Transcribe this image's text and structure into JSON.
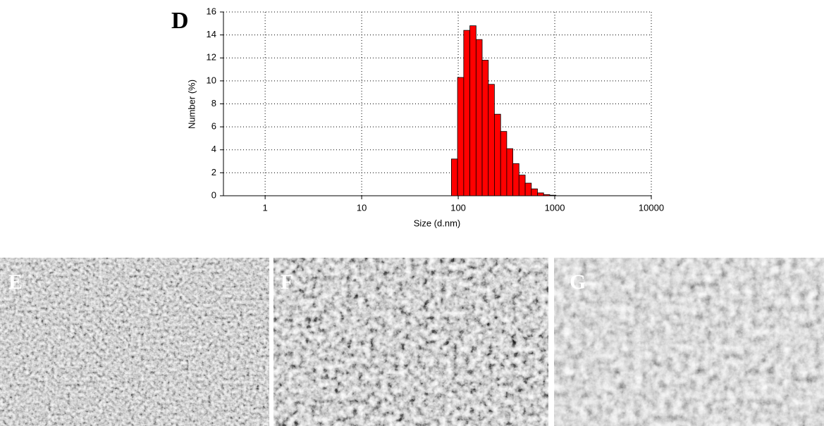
{
  "chart_data": {
    "type": "histogram",
    "panel_label": "D",
    "x_label": "Size (d.nm)",
    "y_label": "Number (%)",
    "x_scale": "log",
    "xlim": [
      0.37,
      10000
    ],
    "xticks": [
      1,
      10,
      100,
      1000,
      10000
    ],
    "ylim": [
      0,
      16
    ],
    "yticks": [
      0,
      2,
      4,
      6,
      8,
      10,
      12,
      14,
      16
    ],
    "grid": true,
    "color": "#ff0000",
    "bins": [
      85,
      98.4,
      114,
      132,
      153,
      177,
      205,
      237,
      275,
      318,
      368,
      426,
      494,
      572,
      662,
      767,
      888,
      1028
    ],
    "values": [
      3.2,
      10.3,
      14.4,
      14.8,
      13.6,
      11.8,
      9.7,
      7.1,
      5.6,
      4.1,
      2.8,
      1.8,
      1.1,
      0.6,
      0.25,
      0.1,
      0.05
    ]
  },
  "images": [
    {
      "label": "E"
    },
    {
      "label": "F"
    },
    {
      "label": "G"
    }
  ]
}
